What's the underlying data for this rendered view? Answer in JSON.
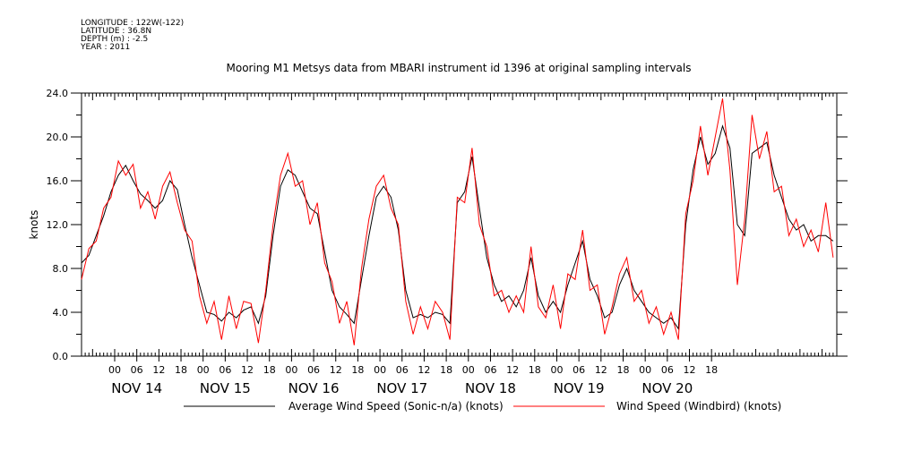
{
  "metadata": {
    "longitude": "LONGITUDE : 122W(-122)",
    "latitude": "LATITUDE : 36.8N",
    "depth": "DEPTH (m) : -2.5",
    "year": "YEAR : 2011"
  },
  "chart_data": {
    "type": "line",
    "title": "Mooring M1 Metsys data from MBARI instrument id 1396 at original sampling intervals",
    "ylabel": "knots",
    "xlabel": "",
    "ylim": [
      0,
      24
    ],
    "yticks": [
      "0.0",
      "4.0",
      "8.0",
      "12.0",
      "16.0",
      "20.0",
      "24.0"
    ],
    "xlim_hours": [
      -9,
      196
    ],
    "hour_tick_labels": [
      "00",
      "06",
      "12",
      "18",
      "00",
      "06",
      "12",
      "18",
      "00",
      "06",
      "12",
      "18",
      "00",
      "06",
      "12",
      "18",
      "00",
      "06",
      "12",
      "18",
      "00",
      "06",
      "12",
      "18",
      "00",
      "06",
      "12",
      "18"
    ],
    "day_labels": [
      "NOV 14",
      "NOV 15",
      "NOV 16",
      "NOV 17",
      "NOV 18",
      "NOV 19",
      "NOV 20"
    ],
    "grid": false,
    "legend_position": "bottom",
    "series": [
      {
        "name": "Average Wind Speed (Sonic-n/a) (knots)",
        "color": "#000000",
        "x": [
          -9,
          -7,
          -5,
          -3,
          -1,
          1,
          3,
          5,
          7,
          9,
          11,
          13,
          15,
          17,
          19,
          21,
          23,
          25,
          27,
          29,
          31,
          33,
          35,
          37,
          39,
          41,
          43,
          45,
          47,
          49,
          51,
          53,
          55,
          57,
          59,
          61,
          63,
          65,
          67,
          69,
          71,
          73,
          75,
          77,
          79,
          81,
          83,
          85,
          87,
          89,
          91,
          93,
          95,
          97,
          99,
          101,
          103,
          105,
          107,
          109,
          111,
          113,
          115,
          117,
          119,
          121,
          123,
          125,
          127,
          129,
          131,
          133,
          135,
          137,
          139,
          141,
          143,
          145,
          147,
          149,
          151,
          153,
          155,
          157,
          159,
          161,
          163,
          165,
          167,
          169,
          171,
          173,
          175,
          177,
          179,
          181,
          183,
          185,
          187,
          189,
          191,
          193,
          195
        ],
        "y": [
          8.5,
          9.2,
          11.0,
          12.8,
          15.0,
          16.5,
          17.4,
          16.0,
          14.8,
          14.2,
          13.5,
          14.2,
          16.0,
          15.2,
          12.0,
          9.0,
          6.5,
          4.0,
          3.8,
          3.2,
          4.0,
          3.5,
          4.2,
          4.5,
          3.0,
          5.5,
          11.0,
          15.5,
          17.0,
          16.5,
          15.0,
          13.5,
          13.0,
          9.5,
          6.0,
          4.5,
          3.8,
          3.0,
          7.0,
          11.0,
          14.5,
          15.5,
          14.5,
          11.5,
          6.0,
          3.5,
          3.8,
          3.5,
          4.0,
          3.8,
          3.0,
          14.0,
          15.0,
          18.2,
          13.5,
          9.0,
          6.5,
          5.0,
          5.5,
          4.5,
          6.0,
          9.0,
          5.5,
          4.0,
          5.0,
          4.0,
          6.5,
          8.5,
          10.5,
          7.0,
          5.5,
          3.5,
          4.0,
          6.5,
          8.0,
          6.0,
          5.0,
          4.0,
          3.5,
          3.0,
          3.5,
          2.5,
          12.0,
          17.0,
          20.0,
          17.5,
          18.5,
          21.0,
          19.0,
          12.0,
          11.0,
          18.5,
          19.0,
          19.5,
          16.5,
          14.5,
          12.5,
          11.5,
          12.0,
          10.5,
          11.0,
          11.0,
          10.5
        ]
      },
      {
        "name": "Wind Speed (Windbird) (knots)",
        "color": "#ff0000",
        "x": [
          -9,
          -7,
          -5,
          -3,
          -1,
          1,
          3,
          5,
          7,
          9,
          11,
          13,
          15,
          17,
          19,
          21,
          23,
          25,
          27,
          29,
          31,
          33,
          35,
          37,
          39,
          41,
          43,
          45,
          47,
          49,
          51,
          53,
          55,
          57,
          59,
          61,
          63,
          65,
          67,
          69,
          71,
          73,
          75,
          77,
          79,
          81,
          83,
          85,
          87,
          89,
          91,
          93,
          95,
          97,
          99,
          101,
          103,
          105,
          107,
          109,
          111,
          113,
          115,
          117,
          119,
          121,
          123,
          125,
          127,
          129,
          131,
          133,
          135,
          137,
          139,
          141,
          143,
          145,
          147,
          149,
          151,
          153,
          155,
          157,
          159,
          161,
          163,
          165,
          167,
          169,
          171,
          173,
          175,
          177,
          179,
          181,
          183,
          185,
          187,
          189,
          191,
          193,
          195
        ],
        "y": [
          7.0,
          9.8,
          10.5,
          13.5,
          14.5,
          17.8,
          16.5,
          17.5,
          13.5,
          15.0,
          12.5,
          15.5,
          16.8,
          14.0,
          11.5,
          10.5,
          5.5,
          3.0,
          5.0,
          1.5,
          5.5,
          2.5,
          5.0,
          4.8,
          1.2,
          6.0,
          12.0,
          16.5,
          18.5,
          15.5,
          16.0,
          12.0,
          14.0,
          8.5,
          6.8,
          3.0,
          5.0,
          1.0,
          8.0,
          12.5,
          15.5,
          16.5,
          13.5,
          12.0,
          5.0,
          2.0,
          4.5,
          2.5,
          5.0,
          4.0,
          1.5,
          14.5,
          14.0,
          19.0,
          12.0,
          10.0,
          5.5,
          6.0,
          4.0,
          5.5,
          4.0,
          10.0,
          4.5,
          3.5,
          6.5,
          2.5,
          7.5,
          7.0,
          11.5,
          6.0,
          6.5,
          2.0,
          4.5,
          7.5,
          9.0,
          5.0,
          6.0,
          3.0,
          4.5,
          2.0,
          4.0,
          1.5,
          13.0,
          16.0,
          21.0,
          16.5,
          20.0,
          23.5,
          17.0,
          6.5,
          12.5,
          22.0,
          18.0,
          20.5,
          15.0,
          15.5,
          11.0,
          12.5,
          10.0,
          11.5,
          9.5,
          14.0,
          9.0
        ]
      }
    ]
  }
}
